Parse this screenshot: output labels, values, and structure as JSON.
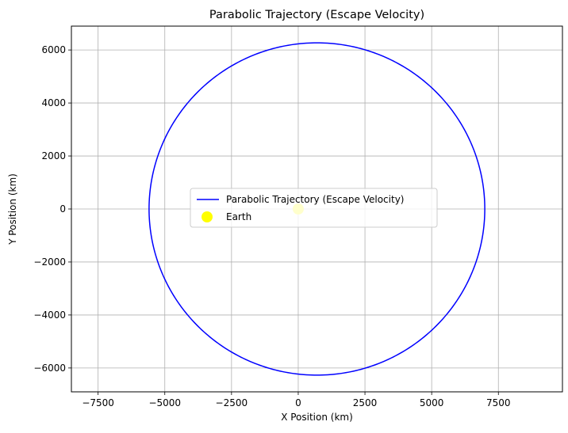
{
  "chart_data": {
    "type": "line",
    "title": "Parabolic Trajectory (Escape Velocity)",
    "xlabel": "X Position (km)",
    "ylabel": "Y Position (km)",
    "xlim": [
      -8500,
      9900
    ],
    "ylim": [
      -6900,
      6900
    ],
    "xticks": [
      -7500,
      -5000,
      -2500,
      0,
      2500,
      5000,
      7500
    ],
    "yticks": [
      -6000,
      -4000,
      -2000,
      0,
      2000,
      4000,
      6000
    ],
    "xtick_labels": [
      "−7500",
      "−5000",
      "−2500",
      "0",
      "2500",
      "5000",
      "7500"
    ],
    "ytick_labels": [
      "−6000",
      "−4000",
      "−2000",
      "0",
      "2000",
      "4000",
      "6000"
    ],
    "grid": true,
    "legend_position": "center",
    "series": [
      {
        "name": "Parabolic Trajectory (Escape Velocity)",
        "kind": "line",
        "color": "#0000ff",
        "center": [
          700,
          0
        ],
        "radius_x": 6290,
        "radius_y": 6270
      },
      {
        "name": "Earth",
        "kind": "scatter",
        "color": "#ffff00",
        "points": [
          [
            0,
            0
          ]
        ]
      }
    ]
  }
}
